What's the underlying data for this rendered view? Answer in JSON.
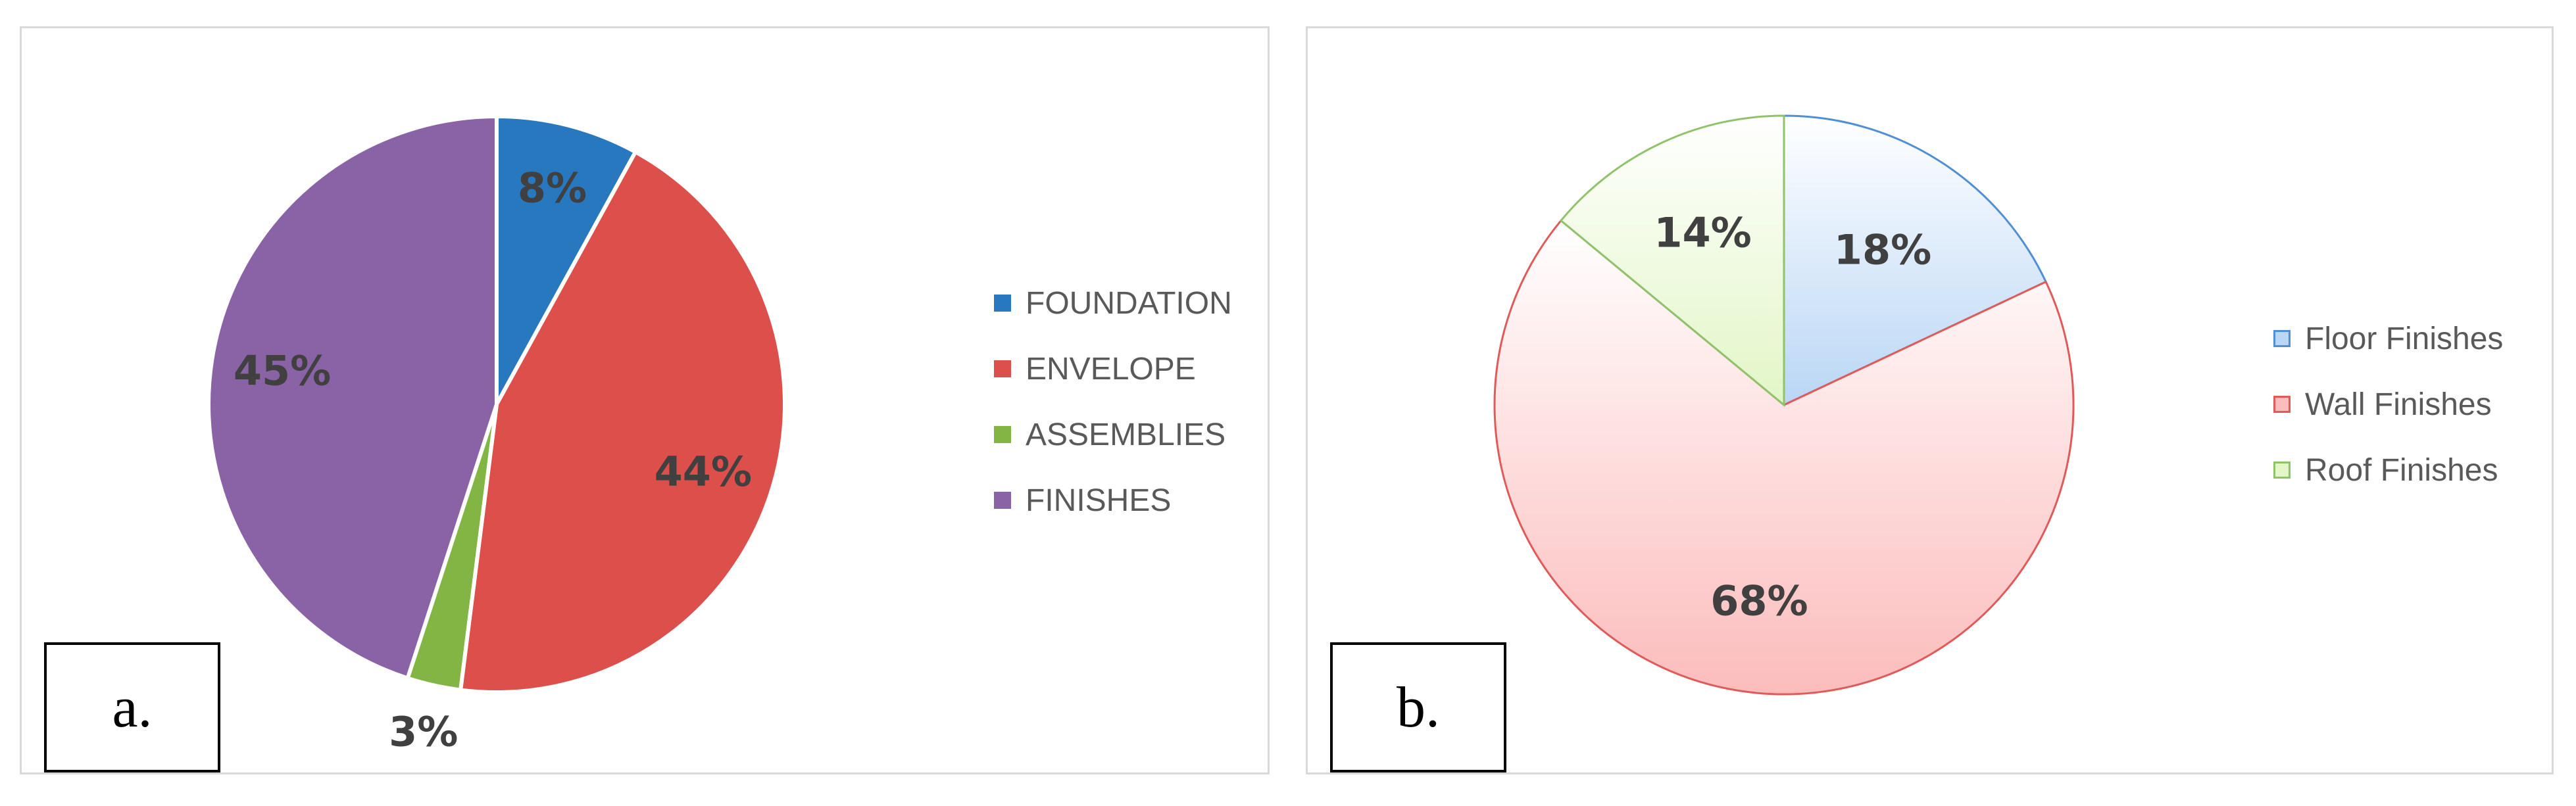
{
  "chart_data": [
    {
      "type": "pie",
      "panel_label": "a.",
      "categories": [
        "FOUNDATION",
        "ENVELOPE",
        "ASSEMBLIES",
        "FINISHES"
      ],
      "values": [
        8,
        44,
        3,
        45
      ],
      "data_labels": [
        "8%",
        "44%",
        "3%",
        "45%"
      ],
      "colors": [
        "#2878c0",
        "#dc4f4a",
        "#82b544",
        "#8a63a6"
      ],
      "legend_placement": "right",
      "start_angle_deg": 0,
      "direction": "clockwise"
    },
    {
      "type": "pie",
      "panel_label": "b.",
      "categories": [
        "Floor Finishes",
        "Wall Finishes",
        "Roof Finishes"
      ],
      "values": [
        18,
        68,
        14
      ],
      "data_labels": [
        "18%",
        "68%",
        "14%"
      ],
      "colors": [
        "#b9d6f5",
        "#fcbcbc",
        "#e2f6c6"
      ],
      "stroke_colors": [
        "#4f8fd4",
        "#e05a5a",
        "#8fc36a"
      ],
      "legend_placement": "right",
      "start_angle_deg": 0,
      "direction": "clockwise"
    }
  ]
}
